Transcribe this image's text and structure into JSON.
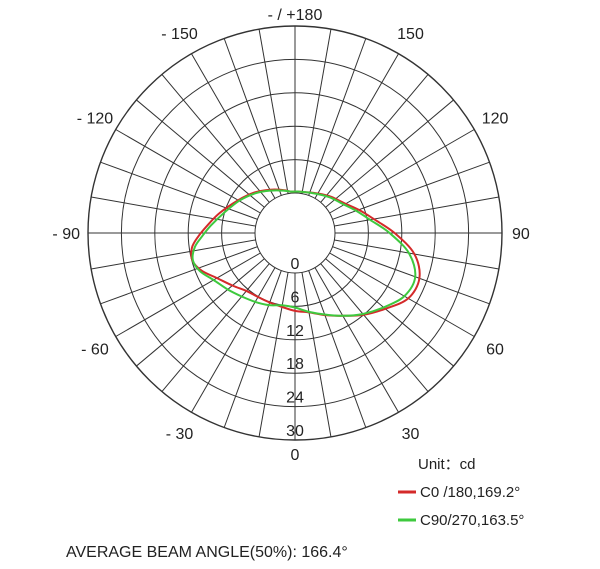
{
  "chart_data": {
    "type": "polar-line",
    "unit_label": "Unit：cd",
    "radial_ticks": [
      "0",
      "6",
      "12",
      "18",
      "24",
      "30"
    ],
    "rlim": [
      0,
      30
    ],
    "angle_labels": [
      {
        "angle": 180,
        "text": "- / +180"
      },
      {
        "angle": 150,
        "text": "150"
      },
      {
        "angle": -150,
        "text": "- 150"
      },
      {
        "angle": 120,
        "text": "120"
      },
      {
        "angle": -120,
        "text": "- 120"
      },
      {
        "angle": 90,
        "text": "90"
      },
      {
        "angle": -90,
        "text": "- 90"
      },
      {
        "angle": 60,
        "text": "60"
      },
      {
        "angle": -60,
        "text": "- 60"
      },
      {
        "angle": 30,
        "text": "30"
      },
      {
        "angle": -30,
        "text": "- 30"
      },
      {
        "angle": 0,
        "text": "0"
      }
    ],
    "series": [
      {
        "name": "C0  /180,169.2°",
        "color": "#d42a2a",
        "points": [
          [
            -174,
            0.3
          ],
          [
            -165,
            0.8
          ],
          [
            -150,
            1.8
          ],
          [
            -135,
            3.1
          ],
          [
            -120,
            4.6
          ],
          [
            -105,
            6.8
          ],
          [
            -95,
            8.6
          ],
          [
            -88,
            10.2
          ],
          [
            -82,
            11.5
          ],
          [
            -75,
            11.9
          ],
          [
            -68,
            10.9
          ],
          [
            -60,
            9.0
          ],
          [
            -50,
            7.5
          ],
          [
            -40,
            6.4
          ],
          [
            -30,
            6.1
          ],
          [
            -20,
            6.1
          ],
          [
            -10,
            6.3
          ],
          [
            0,
            6.8
          ],
          [
            10,
            7.3
          ],
          [
            20,
            8.5
          ],
          [
            30,
            10.0
          ],
          [
            40,
            12.0
          ],
          [
            50,
            14.0
          ],
          [
            60,
            16.3
          ],
          [
            70,
            16.6
          ],
          [
            80,
            14.6
          ],
          [
            90,
            10.7
          ],
          [
            100,
            7.2
          ],
          [
            110,
            5.0
          ],
          [
            120,
            3.3
          ],
          [
            135,
            2.0
          ],
          [
            150,
            1.0
          ],
          [
            165,
            0.4
          ],
          [
            174,
            0.3
          ]
        ]
      },
      {
        "name": "C90/270,163.5°",
        "color": "#3ec93e",
        "points": [
          [
            -174,
            0.3
          ],
          [
            -165,
            0.7
          ],
          [
            -150,
            1.6
          ],
          [
            -135,
            2.9
          ],
          [
            -120,
            4.4
          ],
          [
            -105,
            6.2
          ],
          [
            -95,
            8.0
          ],
          [
            -88,
            9.5
          ],
          [
            -82,
            11.0
          ],
          [
            -75,
            11.8
          ],
          [
            -68,
            11.2
          ],
          [
            -60,
            9.7
          ],
          [
            -50,
            8.6
          ],
          [
            -40,
            7.7
          ],
          [
            -30,
            7.1
          ],
          [
            -20,
            6.6
          ],
          [
            -10,
            6.0
          ],
          [
            0,
            6.2
          ],
          [
            10,
            7.2
          ],
          [
            20,
            8.4
          ],
          [
            30,
            10.0
          ],
          [
            40,
            11.8
          ],
          [
            50,
            13.6
          ],
          [
            60,
            15.5
          ],
          [
            70,
            15.8
          ],
          [
            80,
            13.6
          ],
          [
            90,
            9.8
          ],
          [
            100,
            6.5
          ],
          [
            110,
            4.5
          ],
          [
            120,
            3.0
          ],
          [
            135,
            1.8
          ],
          [
            150,
            0.9
          ],
          [
            165,
            0.4
          ],
          [
            174,
            0.3
          ]
        ]
      }
    ]
  },
  "footer": {
    "beam_angle_text": "AVERAGE BEAM ANGLE(50%): 166.4°"
  }
}
